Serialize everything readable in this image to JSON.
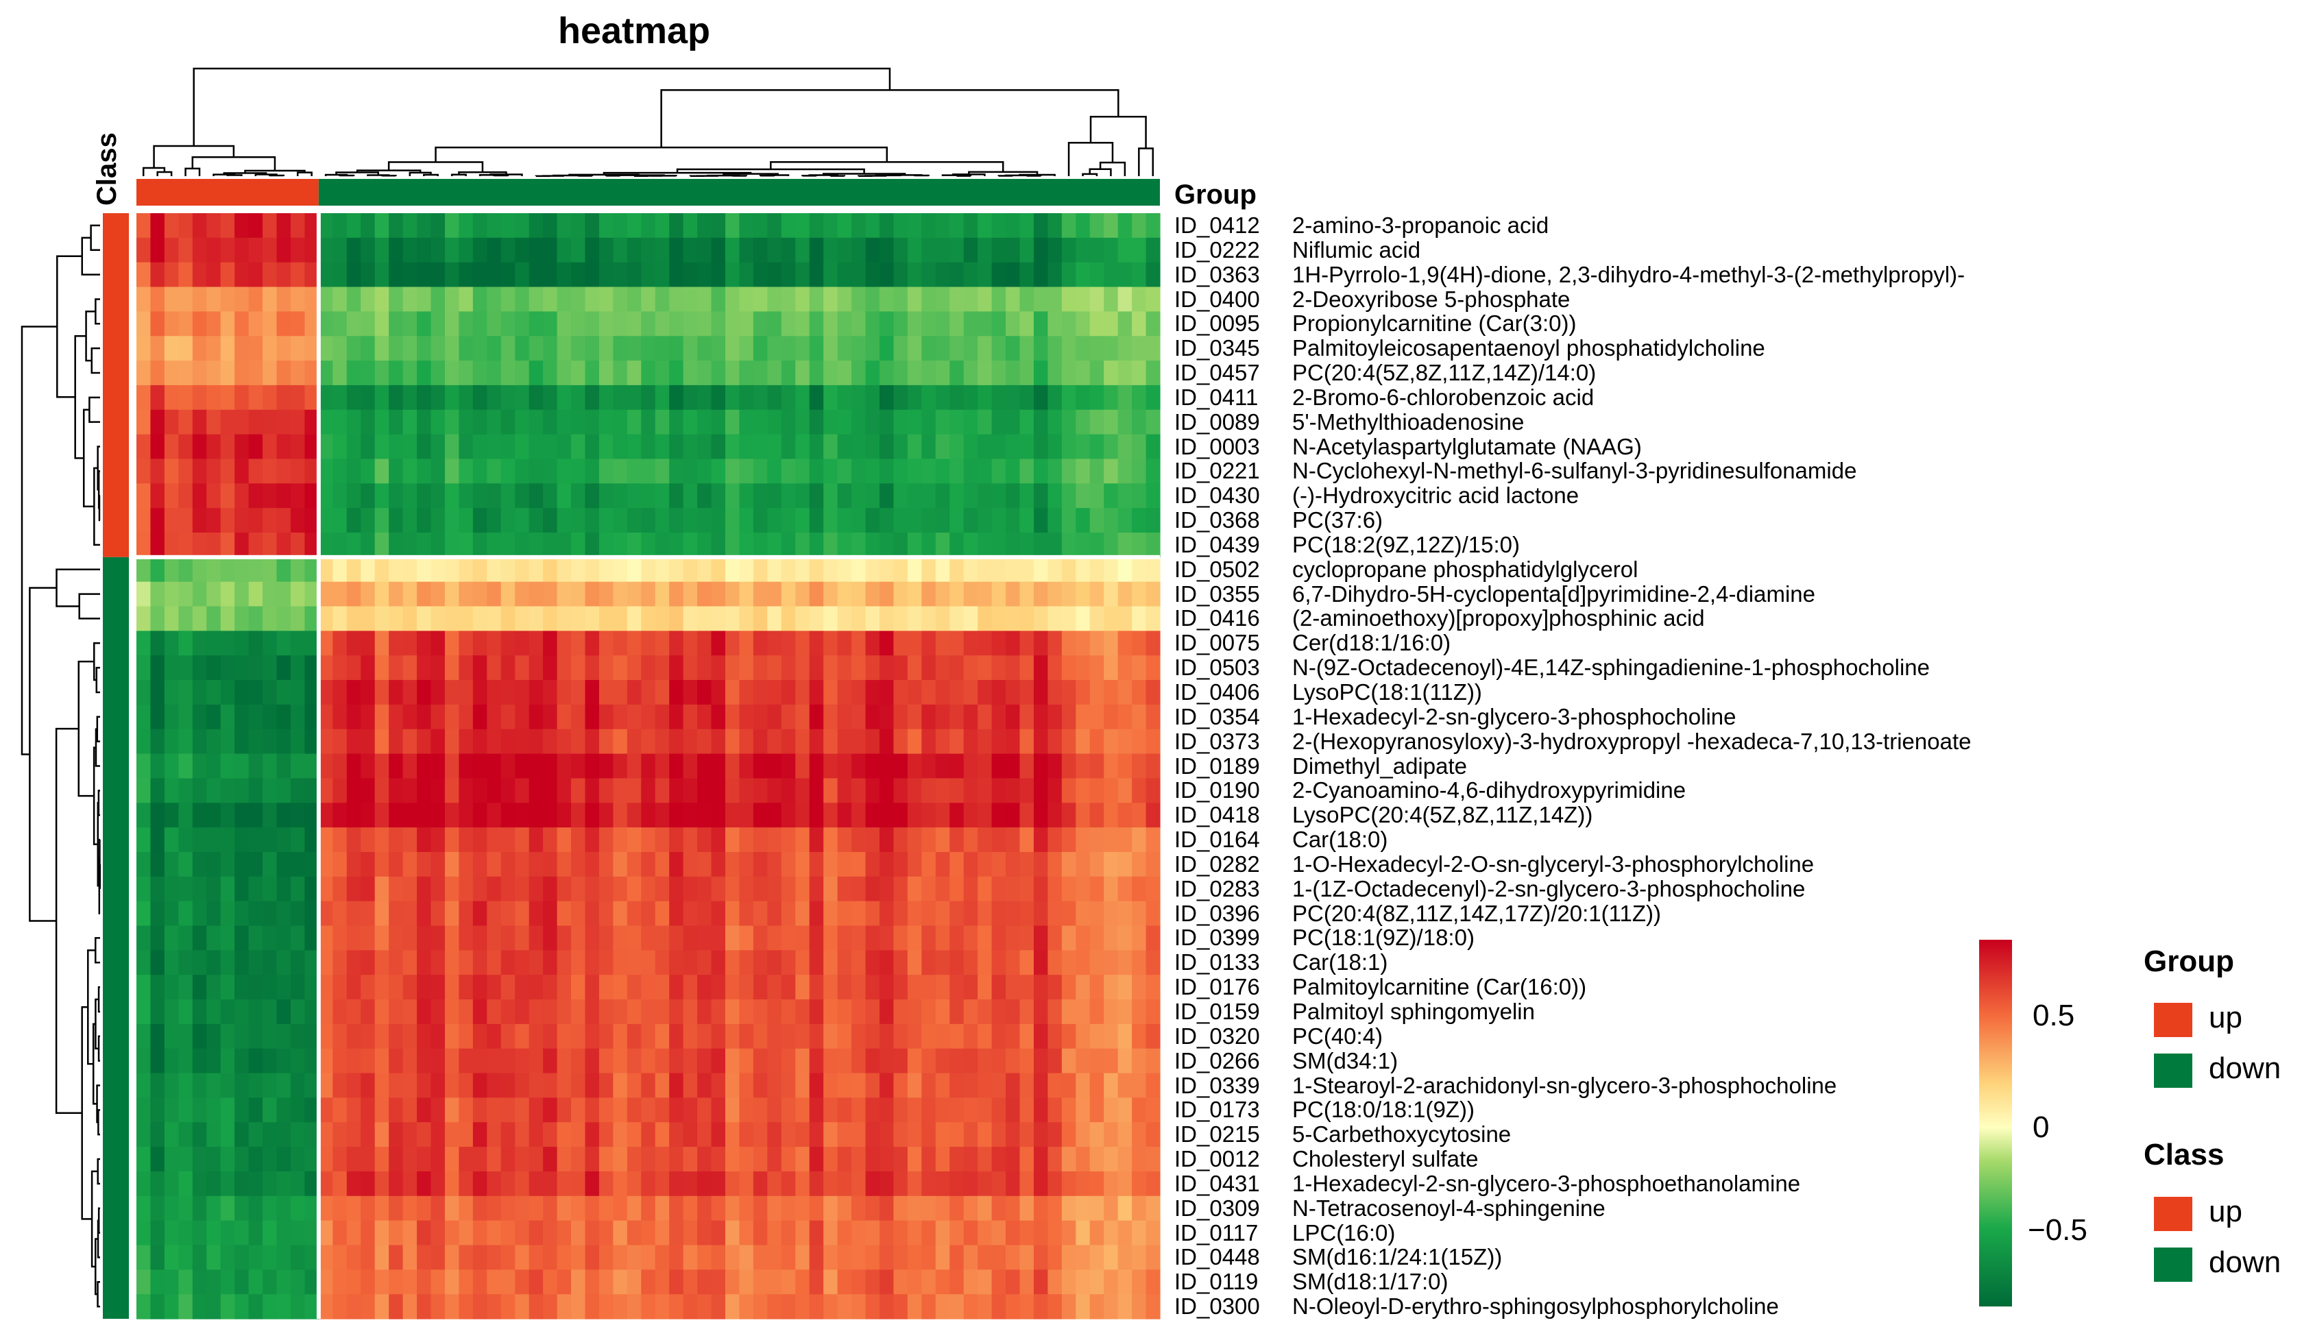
{
  "chart_data": {
    "type": "heatmap",
    "title": "heatmap",
    "column_annotation_label": "Group",
    "row_annotation_label": "Class",
    "color_scale": {
      "range": [
        -0.8,
        0.84
      ],
      "ticks": [
        0.5,
        0,
        -0.5
      ],
      "tick_labels": [
        "0.5",
        "0",
        "−0.5"
      ],
      "stops": [
        [
          -0.8,
          "#006b38"
        ],
        [
          -0.45,
          "#1aa84a"
        ],
        [
          -0.15,
          "#a6d96a"
        ],
        [
          0,
          "#ffffbf"
        ],
        [
          0.2,
          "#fed27a"
        ],
        [
          0.5,
          "#f46b3c"
        ],
        [
          0.84,
          "#c8001e"
        ]
      ]
    },
    "groups": [
      {
        "name": "up",
        "color": "#e8401c",
        "n_samples": 13
      },
      {
        "name": "down",
        "color": "#007a3d",
        "n_samples": 60
      }
    ],
    "legends": {
      "group": {
        "title": "Group",
        "items": [
          {
            "label": "up",
            "color": "#e8401c"
          },
          {
            "label": "down",
            "color": "#007a3d"
          }
        ]
      },
      "class": {
        "title": "Class",
        "items": [
          {
            "label": "up",
            "color": "#e8401c"
          },
          {
            "label": "down",
            "color": "#007a3d"
          }
        ]
      }
    },
    "rows": [
      {
        "id": "ID_0412",
        "name": "2-amino-3-propanoic acid",
        "class": "up",
        "up_mean": 0.7,
        "down_mean": -0.55
      },
      {
        "id": "ID_0222",
        "name": "Niflumic acid",
        "class": "up",
        "up_mean": 0.7,
        "down_mean": -0.7
      },
      {
        "id": "ID_0363",
        "name": "1H-Pyrrolo-1,9(4H)-dione, 2,3-dihydro-4-methyl-3-(2-methylpropyl)-",
        "class": "up",
        "up_mean": 0.65,
        "down_mean": -0.75
      },
      {
        "id": "ID_0400",
        "name": "2-Deoxyribose 5-phosphate",
        "class": "up",
        "up_mean": 0.35,
        "down_mean": -0.25
      },
      {
        "id": "ID_0095",
        "name": "Propionylcarnitine (Car(3:0))",
        "class": "up",
        "up_mean": 0.4,
        "down_mean": -0.3
      },
      {
        "id": "ID_0345",
        "name": "Palmitoyleicosapentaenoyl phosphatidylcholine",
        "class": "up",
        "up_mean": 0.35,
        "down_mean": -0.35
      },
      {
        "id": "ID_0457",
        "name": "PC(20:4(5Z,8Z,11Z,14Z)/14:0)",
        "class": "up",
        "up_mean": 0.4,
        "down_mean": -0.35
      },
      {
        "id": "ID_0411",
        "name": "2-Bromo-6-chlorobenzoic acid",
        "class": "up",
        "up_mean": 0.55,
        "down_mean": -0.6
      },
      {
        "id": "ID_0089",
        "name": "5'-Methylthioadenosine",
        "class": "up",
        "up_mean": 0.65,
        "down_mean": -0.5
      },
      {
        "id": "ID_0003",
        "name": "N-Acetylaspartylglutamate (NAAG)",
        "class": "up",
        "up_mean": 0.7,
        "down_mean": -0.5
      },
      {
        "id": "ID_0221",
        "name": "N-Cyclohexyl-N-methyl-6-sulfanyl-3-pyridinesulfonamide",
        "class": "up",
        "up_mean": 0.65,
        "down_mean": -0.45
      },
      {
        "id": "ID_0430",
        "name": "(-)-Hydroxycitric acid lactone",
        "class": "up",
        "up_mean": 0.7,
        "down_mean": -0.55
      },
      {
        "id": "ID_0368",
        "name": "PC(37:6)",
        "class": "up",
        "up_mean": 0.7,
        "down_mean": -0.55
      },
      {
        "id": "ID_0439",
        "name": "PC(18:2(9Z,12Z)/15:0)",
        "class": "up",
        "up_mean": 0.65,
        "down_mean": -0.5
      },
      {
        "id": "ID_0502",
        "name": "cyclopropane phosphatidylglycerol",
        "class": "down",
        "up_mean": -0.3,
        "down_mean": 0.1
      },
      {
        "id": "ID_0355",
        "name": "6,7-Dihydro-5H-cyclopenta[d]pyrimidine-2,4-diamine",
        "class": "down",
        "up_mean": -0.2,
        "down_mean": 0.3
      },
      {
        "id": "ID_0416",
        "name": "(2-aminoethoxy)[propoxy]phosphinic acid",
        "class": "down",
        "up_mean": -0.25,
        "down_mean": 0.15
      },
      {
        "id": "ID_0075",
        "name": "Cer(d18:1/16:0)",
        "class": "down",
        "up_mean": -0.6,
        "down_mean": 0.65
      },
      {
        "id": "ID_0503",
        "name": "N-(9Z-Octadecenoyl)-4E,14Z-sphingadienine-1-phosphocholine",
        "class": "down",
        "up_mean": -0.7,
        "down_mean": 0.65
      },
      {
        "id": "ID_0406",
        "name": "LysoPC(18:1(11Z))",
        "class": "down",
        "up_mean": -0.65,
        "down_mean": 0.7
      },
      {
        "id": "ID_0354",
        "name": "1-Hexadecyl-2-sn-glycero-3-phosphocholine",
        "class": "down",
        "up_mean": -0.7,
        "down_mean": 0.7
      },
      {
        "id": "ID_0373",
        "name": "2-(Hexopyranosyloxy)-3-hydroxypropyl -hexadeca-7,10,13-trienoate",
        "class": "down",
        "up_mean": -0.65,
        "down_mean": 0.65
      },
      {
        "id": "ID_0189",
        "name": "Dimethyl_adipate",
        "class": "down",
        "up_mean": -0.55,
        "down_mean": 0.8
      },
      {
        "id": "ID_0190",
        "name": "2-Cyanoamino-4,6-dihydroxypyrimidine",
        "class": "down",
        "up_mean": -0.6,
        "down_mean": 0.75
      },
      {
        "id": "ID_0418",
        "name": "LysoPC(20:4(5Z,8Z,11Z,14Z))",
        "class": "down",
        "up_mean": -0.75,
        "down_mean": 0.8
      },
      {
        "id": "ID_0164",
        "name": "Car(18:0)",
        "class": "down",
        "up_mean": -0.65,
        "down_mean": 0.6
      },
      {
        "id": "ID_0282",
        "name": "1-O-Hexadecyl-2-O-sn-glyceryl-3-phosphorylcholine",
        "class": "down",
        "up_mean": -0.65,
        "down_mean": 0.6
      },
      {
        "id": "ID_0283",
        "name": "1-(1Z-Octadecenyl)-2-sn-glycero-3-phosphocholine",
        "class": "down",
        "up_mean": -0.65,
        "down_mean": 0.6
      },
      {
        "id": "ID_0396",
        "name": "PC(20:4(8Z,11Z,14Z,17Z)/20:1(11Z))",
        "class": "down",
        "up_mean": -0.65,
        "down_mean": 0.6
      },
      {
        "id": "ID_0399",
        "name": "PC(18:1(9Z)/18:0)",
        "class": "down",
        "up_mean": -0.65,
        "down_mean": 0.6
      },
      {
        "id": "ID_0133",
        "name": "Car(18:1)",
        "class": "down",
        "up_mean": -0.65,
        "down_mean": 0.6
      },
      {
        "id": "ID_0176",
        "name": "Palmitoylcarnitine (Car(16:0))",
        "class": "down",
        "up_mean": -0.65,
        "down_mean": 0.6
      },
      {
        "id": "ID_0159",
        "name": "Palmitoyl sphingomyelin",
        "class": "down",
        "up_mean": -0.65,
        "down_mean": 0.6
      },
      {
        "id": "ID_0320",
        "name": "PC(40:4)",
        "class": "down",
        "up_mean": -0.65,
        "down_mean": 0.6
      },
      {
        "id": "ID_0266",
        "name": "SM(d34:1)",
        "class": "down",
        "up_mean": -0.65,
        "down_mean": 0.6
      },
      {
        "id": "ID_0339",
        "name": "1-Stearoyl-2-arachidonyl-sn-glycero-3-phosphocholine",
        "class": "down",
        "up_mean": -0.6,
        "down_mean": 0.6
      },
      {
        "id": "ID_0173",
        "name": "PC(18:0/18:1(9Z))",
        "class": "down",
        "up_mean": -0.6,
        "down_mean": 0.6
      },
      {
        "id": "ID_0215",
        "name": "5-Carbethoxycytosine",
        "class": "down",
        "up_mean": -0.6,
        "down_mean": 0.6
      },
      {
        "id": "ID_0012",
        "name": "Cholesteryl sulfate",
        "class": "down",
        "up_mean": -0.6,
        "down_mean": 0.6
      },
      {
        "id": "ID_0431",
        "name": "1-Hexadecyl-2-sn-glycero-3-phosphoethanolamine",
        "class": "down",
        "up_mean": -0.6,
        "down_mean": 0.65
      },
      {
        "id": "ID_0309",
        "name": "N-Tetracosenoyl-4-sphingenine",
        "class": "down",
        "up_mean": -0.5,
        "down_mean": 0.5
      },
      {
        "id": "ID_0117",
        "name": "LPC(16:0)",
        "class": "down",
        "up_mean": -0.5,
        "down_mean": 0.5
      },
      {
        "id": "ID_0448",
        "name": "SM(d16:1/24:1(15Z))",
        "class": "down",
        "up_mean": -0.5,
        "down_mean": 0.5
      },
      {
        "id": "ID_0119",
        "name": "SM(d18:1/17:0)",
        "class": "down",
        "up_mean": -0.5,
        "down_mean": 0.5
      },
      {
        "id": "ID_0300",
        "name": "N-Oleoyl-D-erythro-sphingosylphosphorylcholine",
        "class": "down",
        "up_mean": -0.5,
        "down_mean": 0.5
      }
    ]
  }
}
